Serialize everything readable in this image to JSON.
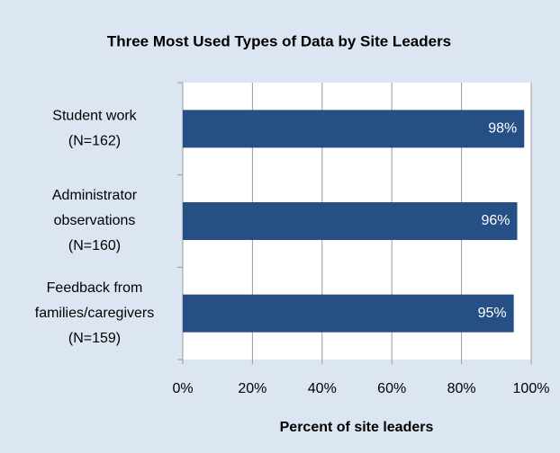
{
  "chart_data": {
    "type": "bar",
    "orientation": "horizontal",
    "title": "Three Most Used Types of Data by Site Leaders",
    "x_label": "Percent of site leaders",
    "categories": [
      [
        "Student work",
        "(N=162)"
      ],
      [
        "Administrator",
        "observations",
        "(N=160)"
      ],
      [
        "Feedback from",
        "families/caregivers",
        "(N=159)"
      ]
    ],
    "values": [
      98,
      96,
      95
    ],
    "value_labels": [
      "98%",
      "96%",
      "95%"
    ],
    "color": "#254f85",
    "xlim": [
      0,
      100
    ],
    "xticks": [
      {
        "value": 0,
        "label": "0%"
      },
      {
        "value": 20,
        "label": "20%"
      },
      {
        "value": 40,
        "label": "40%"
      },
      {
        "value": 60,
        "label": "60%"
      },
      {
        "value": 80,
        "label": "80%"
      },
      {
        "value": 100,
        "label": "100%"
      }
    ],
    "grid": true
  }
}
